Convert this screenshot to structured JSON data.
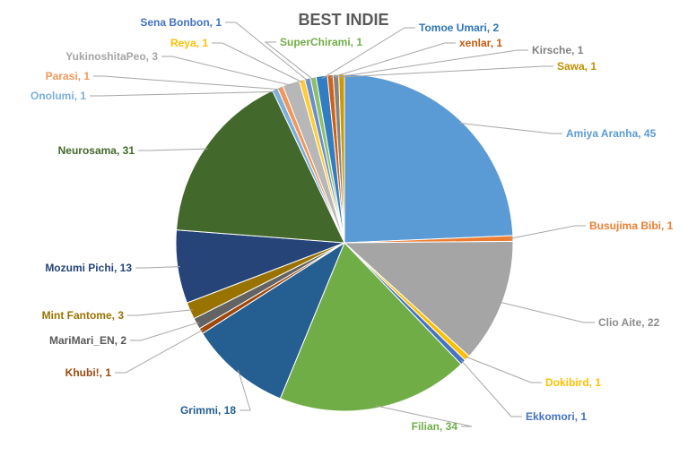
{
  "chart_data": {
    "type": "pie",
    "title": "BEST INDIE",
    "slices": [
      {
        "label": "Amiya Aranha, 45",
        "name": "Amiya Aranha",
        "value": 45,
        "color": "#5B9BD5",
        "text_color": "#5B9BD5"
      },
      {
        "label": "Busujima Bibi, 1",
        "name": "Busujima Bibi",
        "value": 1,
        "color": "#ED7D31",
        "text_color": "#ED7D31"
      },
      {
        "label": "Clio Aite, 22",
        "name": "Clio Aite",
        "value": 22,
        "color": "#A5A5A5",
        "text_color": "#8C8C8C"
      },
      {
        "label": "Dokibird, 1",
        "name": "Dokibird",
        "value": 1,
        "color": "#FFC000",
        "text_color": "#FFC000"
      },
      {
        "label": "Ekkomori, 1",
        "name": "Ekkomori",
        "value": 1,
        "color": "#4472C4",
        "text_color": "#4472C4"
      },
      {
        "label": "Filian, 34",
        "name": "Filian",
        "value": 34,
        "color": "#70AD47",
        "text_color": "#70AD47"
      },
      {
        "label": "Grimmi, 18",
        "name": "Grimmi",
        "value": 18,
        "color": "#255E91",
        "text_color": "#255E91"
      },
      {
        "label": "Khubi!, 1",
        "name": "Khubi!",
        "value": 1,
        "color": "#9E480E",
        "text_color": "#9E480E"
      },
      {
        "label": "MariMari_EN, 2",
        "name": "MariMari_EN",
        "value": 2,
        "color": "#636363",
        "text_color": "#595959"
      },
      {
        "label": "Mint Fantome, 3",
        "name": "Mint Fantome",
        "value": 3,
        "color": "#997300",
        "text_color": "#997300"
      },
      {
        "label": "Mozumi Pichi, 13",
        "name": "Mozumi Pichi",
        "value": 13,
        "color": "#264478",
        "text_color": "#264478"
      },
      {
        "label": "Neurosama, 31",
        "name": "Neurosama",
        "value": 31,
        "color": "#43682B",
        "text_color": "#43682B"
      },
      {
        "label": "Onolumi, 1",
        "name": "Onolumi",
        "value": 1,
        "color": "#7CAFDD",
        "text_color": "#7CAFDD"
      },
      {
        "label": "Parasi, 1",
        "name": "Parasi",
        "value": 1,
        "color": "#F1975A",
        "text_color": "#F1975A"
      },
      {
        "label": "YukinoshitaPeo, 3",
        "name": "YukinoshitaPeo",
        "value": 3,
        "color": "#B7B7B7",
        "text_color": "#A5A5A5"
      },
      {
        "label": "Reya, 1",
        "name": "Reya",
        "value": 1,
        "color": "#FFCD33",
        "text_color": "#FFC000"
      },
      {
        "label": "Sena Bonbon, 1",
        "name": "Sena Bonbon",
        "value": 1,
        "color": "#698ED0",
        "text_color": "#4472C4"
      },
      {
        "label": "SuperChirami, 1",
        "name": "SuperChirami",
        "value": 1,
        "color": "#8CC168",
        "text_color": "#70AD47"
      },
      {
        "label": "Tomoe Umari, 2",
        "name": "Tomoe Umari",
        "value": 2,
        "color": "#327DC2",
        "text_color": "#2E75B6"
      },
      {
        "label": "xenlar, 1",
        "name": "xenlar",
        "value": 1,
        "color": "#D26012",
        "text_color": "#C55A11"
      },
      {
        "label": "Kirsche, 1",
        "name": "Kirsche",
        "value": 1,
        "color": "#848484",
        "text_color": "#7F7F7F"
      },
      {
        "label": "Sawa, 1",
        "name": "Sawa",
        "value": 1,
        "color": "#CC9A00",
        "text_color": "#BF9000"
      }
    ],
    "start_angle_deg": 0,
    "direction": "clockwise",
    "data_labels": "outside-with-leader-lines",
    "legend": "none"
  }
}
